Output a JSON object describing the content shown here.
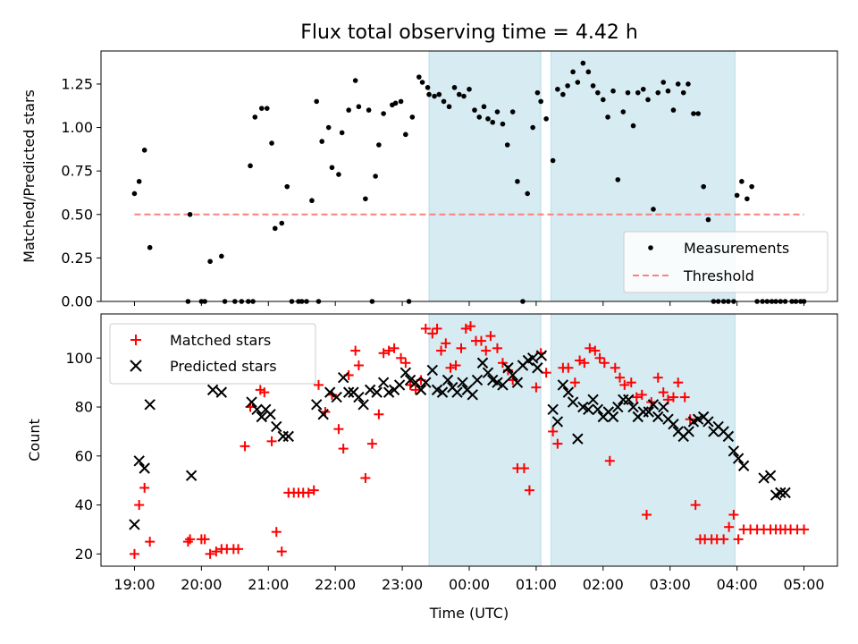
{
  "chart_data": [
    {
      "type": "scatter",
      "title": "Flux total observing time = 4.42 h",
      "xlabel": "",
      "ylabel": "Matched/Predicted stars",
      "ylim": [
        0,
        1.44
      ],
      "yticks": [
        "0.00",
        "0.25",
        "0.50",
        "0.75",
        "1.00",
        "1.25"
      ],
      "ytick_values": [
        0,
        0.25,
        0.5,
        0.75,
        1.0,
        1.25
      ],
      "x_unit": "hours after 19:00 UTC",
      "xlim": [
        -0.5,
        10.5
      ],
      "shaded_intervals": [
        [
          4.4,
          6.07
        ],
        [
          6.22,
          8.97
        ]
      ],
      "legend": {
        "placement": "lower-right",
        "entries": [
          "Measurements",
          "Threshold"
        ]
      },
      "threshold": {
        "name": "Threshold",
        "value": 0.5,
        "x_range": [
          0,
          10
        ],
        "color": "#ff7f7f"
      },
      "series": [
        {
          "name": "Measurements",
          "color": "#000000",
          "x": [
            0,
            0.07,
            0.15,
            0.23,
            0.8,
            0.83,
            1.0,
            1.05,
            1.13,
            1.3,
            1.35,
            1.5,
            1.6,
            1.7,
            1.73,
            1.77,
            1.8,
            1.9,
            1.98,
            2.05,
            2.1,
            2.2,
            2.28,
            2.35,
            2.45,
            2.5,
            2.57,
            2.65,
            2.72,
            2.75,
            2.8,
            2.9,
            2.95,
            3.05,
            3.1,
            3.2,
            3.3,
            3.35,
            3.45,
            3.5,
            3.55,
            3.6,
            3.65,
            3.72,
            3.85,
            3.9,
            3.98,
            4.05,
            4.1,
            4.15,
            4.25,
            4.3,
            4.38,
            4.4,
            4.48,
            4.55,
            4.62,
            4.7,
            4.78,
            4.85,
            4.92,
            5.0,
            5.08,
            5.15,
            5.22,
            5.28,
            5.35,
            5.42,
            5.5,
            5.57,
            5.65,
            5.72,
            5.8,
            5.87,
            5.95,
            6.02,
            6.07,
            6.15,
            6.25,
            6.32,
            6.4,
            6.47,
            6.55,
            6.62,
            6.7,
            6.78,
            6.85,
            6.92,
            7.0,
            7.07,
            7.15,
            7.22,
            7.3,
            7.37,
            7.45,
            7.52,
            7.6,
            7.67,
            7.75,
            7.82,
            7.9,
            7.97,
            8.05,
            8.12,
            8.2,
            8.27,
            8.35,
            8.42,
            8.5,
            8.57,
            8.65,
            8.72,
            8.8,
            8.87,
            8.95,
            9.0,
            9.07,
            9.15,
            9.22,
            9.3,
            9.38,
            9.45,
            9.52,
            9.58,
            9.65,
            9.72,
            9.82,
            9.88,
            9.95,
            10.0
          ],
          "y": [
            0.62,
            0.69,
            0.87,
            0.31,
            0.0,
            0.5,
            0.0,
            0.0,
            0.23,
            0.26,
            0.0,
            0.0,
            0.0,
            0.0,
            0.78,
            0.0,
            1.06,
            1.11,
            1.11,
            0.91,
            0.42,
            0.45,
            0.66,
            0.0,
            0.0,
            0.0,
            0.0,
            0.58,
            1.15,
            0.0,
            0.92,
            1.0,
            0.77,
            0.73,
            0.97,
            1.1,
            1.27,
            1.12,
            0.59,
            1.1,
            0.0,
            0.72,
            0.9,
            1.08,
            1.13,
            1.14,
            1.15,
            0.96,
            0.0,
            1.06,
            1.29,
            1.26,
            1.23,
            1.19,
            1.18,
            1.19,
            1.15,
            1.12,
            1.23,
            1.19,
            1.18,
            1.22,
            1.1,
            1.06,
            1.12,
            1.05,
            1.03,
            1.09,
            1.02,
            0.9,
            1.09,
            0.69,
            0.0,
            0.62,
            1.0,
            1.2,
            1.15,
            1.05,
            0.81,
            1.22,
            1.19,
            1.24,
            1.32,
            1.26,
            1.37,
            1.32,
            1.24,
            1.2,
            1.16,
            1.06,
            1.21,
            0.7,
            1.09,
            1.2,
            1.01,
            1.2,
            1.22,
            1.16,
            0.53,
            1.2,
            1.26,
            1.21,
            1.1,
            1.25,
            1.2,
            1.25,
            1.08,
            1.08,
            0.66,
            0.47,
            0.0,
            0.0,
            0.0,
            0.0,
            0.0,
            0.61,
            0.69,
            0.59,
            0.66,
            0.0,
            0.0,
            0.0,
            0.0,
            0.0,
            0.0,
            0.0,
            0.0,
            0.0,
            0.0,
            0.0
          ]
        }
      ]
    },
    {
      "type": "scatter",
      "xlabel": "Time (UTC)",
      "ylabel": "Count",
      "ylim": [
        15,
        118
      ],
      "yticks": [
        "20",
        "40",
        "60",
        "80",
        "100"
      ],
      "ytick_values": [
        20,
        40,
        60,
        80,
        100
      ],
      "x_unit": "hours after 19:00 UTC",
      "xlim": [
        -0.5,
        10.5
      ],
      "xticks": [
        "19:00",
        "20:00",
        "21:00",
        "22:00",
        "23:00",
        "00:00",
        "01:00",
        "02:00",
        "03:00",
        "04:00",
        "05:00"
      ],
      "xtick_values": [
        0,
        1,
        2,
        3,
        4,
        5,
        6,
        7,
        8,
        9,
        10
      ],
      "shaded_intervals": [
        [
          4.4,
          6.07
        ],
        [
          6.22,
          8.97
        ]
      ],
      "legend": {
        "placement": "upper-left",
        "entries": [
          "Matched stars",
          "Predicted stars"
        ]
      },
      "series": [
        {
          "name": "Matched stars",
          "marker": "plus",
          "color": "#ff0000",
          "x": [
            0,
            0.07,
            0.15,
            0.23,
            0.8,
            0.83,
            1.0,
            1.05,
            1.13,
            1.22,
            1.3,
            1.38,
            1.48,
            1.55,
            1.65,
            1.73,
            1.88,
            1.94,
            2.05,
            2.12,
            2.2,
            2.3,
            2.38,
            2.45,
            2.52,
            2.6,
            2.68,
            2.75,
            2.85,
            2.95,
            3.05,
            3.12,
            3.2,
            3.3,
            3.35,
            3.45,
            3.55,
            3.65,
            3.72,
            3.8,
            3.88,
            3.98,
            4.05,
            4.12,
            4.2,
            4.28,
            4.35,
            4.45,
            4.52,
            4.58,
            4.65,
            4.72,
            4.8,
            4.88,
            4.95,
            5.02,
            5.1,
            5.18,
            5.25,
            5.32,
            5.42,
            5.5,
            5.58,
            5.65,
            5.72,
            5.82,
            5.9,
            6.0,
            6.07,
            6.15,
            6.25,
            6.32,
            6.4,
            6.48,
            6.58,
            6.65,
            6.72,
            6.8,
            6.88,
            6.95,
            7.02,
            7.1,
            7.18,
            7.25,
            7.32,
            7.42,
            7.5,
            7.58,
            7.65,
            7.72,
            7.82,
            7.9,
            7.97,
            8.05,
            8.12,
            8.22,
            8.3,
            8.38,
            8.45,
            8.52,
            8.62,
            8.7,
            8.8,
            8.88,
            8.95,
            9.02,
            9.1,
            9.2,
            9.3,
            9.4,
            9.5,
            9.58,
            9.65,
            9.72,
            9.8,
            9.9,
            10.0
          ],
          "y": [
            20,
            40,
            47,
            25,
            25,
            26,
            26,
            26,
            20,
            21,
            22,
            22,
            22,
            22,
            64,
            80,
            87,
            86,
            66,
            29,
            21,
            45,
            45,
            45,
            45,
            45,
            46,
            89,
            78,
            85,
            71,
            63,
            93,
            103,
            97,
            51,
            65,
            77,
            102,
            103,
            104,
            100,
            98,
            89,
            87,
            91,
            112,
            110,
            112,
            103,
            106,
            96,
            97,
            104,
            112,
            113,
            107,
            107,
            103,
            109,
            104,
            98,
            95,
            91,
            55,
            55,
            46,
            88,
            102,
            94,
            70,
            65,
            96,
            96,
            90,
            99,
            98,
            104,
            103,
            100,
            98,
            58,
            96,
            92,
            89,
            90,
            84,
            85,
            36,
            82,
            92,
            86,
            83,
            84,
            90,
            84,
            75,
            40,
            26,
            26,
            26,
            26,
            26,
            31,
            36,
            26,
            30,
            30,
            30,
            30,
            30,
            30,
            30,
            30,
            30,
            30,
            30
          ]
        },
        {
          "name": "Predicted stars",
          "marker": "x",
          "color": "#000000",
          "x": [
            0,
            0.07,
            0.15,
            0.23,
            0.85,
            1.17,
            1.3,
            1.75,
            1.83,
            1.9,
            1.96,
            2.03,
            2.12,
            2.22,
            2.3,
            2.72,
            2.82,
            2.92,
            3.02,
            3.12,
            3.2,
            3.27,
            3.35,
            3.42,
            3.52,
            3.62,
            3.72,
            3.8,
            3.88,
            3.96,
            4.05,
            4.12,
            4.2,
            4.28,
            4.35,
            4.45,
            4.52,
            4.6,
            4.68,
            4.75,
            4.82,
            4.9,
            4.97,
            5.05,
            5.12,
            5.2,
            5.28,
            5.35,
            5.42,
            5.5,
            5.58,
            5.65,
            5.72,
            5.8,
            5.88,
            5.95,
            6.02,
            6.08,
            6.25,
            6.32,
            6.4,
            6.48,
            6.55,
            6.62,
            6.7,
            6.78,
            6.85,
            6.92,
            7.0,
            7.08,
            7.15,
            7.22,
            7.3,
            7.38,
            7.45,
            7.52,
            7.6,
            7.68,
            7.75,
            7.82,
            7.9,
            7.97,
            8.05,
            8.12,
            8.2,
            8.28,
            8.35,
            8.42,
            8.5,
            8.57,
            8.65,
            8.72,
            8.8,
            8.87,
            8.95,
            9.02,
            9.1,
            9.4,
            9.5,
            9.58,
            9.65,
            9.72
          ],
          "y": [
            32,
            58,
            55,
            81,
            52,
            87,
            86,
            82,
            79,
            76,
            79,
            77,
            72,
            68,
            68,
            81,
            77,
            86,
            84,
            92,
            86,
            86,
            84,
            81,
            87,
            86,
            90,
            86,
            87,
            89,
            94,
            91,
            90,
            87,
            90,
            95,
            87,
            86,
            91,
            88,
            86,
            90,
            87,
            85,
            91,
            98,
            94,
            91,
            90,
            89,
            96,
            93,
            90,
            97,
            99,
            100,
            96,
            101,
            79,
            74,
            89,
            86,
            82,
            67,
            80,
            79,
            83,
            79,
            76,
            78,
            76,
            80,
            83,
            83,
            80,
            76,
            78,
            78,
            81,
            76,
            80,
            75,
            73,
            70,
            68,
            70,
            74,
            75,
            76,
            74,
            70,
            72,
            70,
            68,
            62,
            59,
            56,
            51,
            52,
            44,
            45,
            45
          ]
        }
      ]
    }
  ]
}
